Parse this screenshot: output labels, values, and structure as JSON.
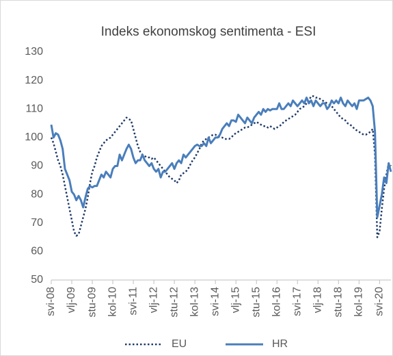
{
  "chart_data": {
    "type": "line",
    "title": "Indeks ekonomskog sentimenta - ESI",
    "categories": [
      "svi-08",
      null,
      null,
      null,
      null,
      null,
      null,
      null,
      null,
      "vlj-09",
      null,
      null,
      null,
      null,
      null,
      null,
      null,
      null,
      "stu-09",
      null,
      null,
      null,
      null,
      null,
      null,
      null,
      null,
      "kol-10",
      null,
      null,
      null,
      null,
      null,
      null,
      null,
      null,
      "svi-11",
      null,
      null,
      null,
      null,
      null,
      null,
      null,
      null,
      "vlj-12",
      null,
      null,
      null,
      null,
      null,
      null,
      null,
      null,
      "stu-12",
      null,
      null,
      null,
      null,
      null,
      null,
      null,
      null,
      "kol-13",
      null,
      null,
      null,
      null,
      null,
      null,
      null,
      null,
      "svi-14",
      null,
      null,
      null,
      null,
      null,
      null,
      null,
      null,
      "vlj-15",
      null,
      null,
      null,
      null,
      null,
      null,
      null,
      null,
      "stu-15",
      null,
      null,
      null,
      null,
      null,
      null,
      null,
      null,
      "kol-16",
      null,
      null,
      null,
      null,
      null,
      null,
      null,
      null,
      "svi-17",
      null,
      null,
      null,
      null,
      null,
      null,
      null,
      null,
      "vlj-18",
      null,
      null,
      null,
      null,
      null,
      null,
      null,
      null,
      "stu-18",
      null,
      null,
      null,
      null,
      null,
      null,
      null,
      null,
      "kol-19",
      null,
      null,
      null,
      null,
      null,
      null,
      null,
      null,
      "svi-20",
      null,
      null,
      null,
      null,
      null
    ],
    "series": [
      {
        "name": "EU",
        "color": "#1f3a68",
        "line_style": "dotted",
        "values": [
          100,
          98,
          95,
          92,
          90,
          87,
          83,
          79,
          75,
          71,
          67,
          65.5,
          66,
          69,
          72,
          75,
          79,
          84,
          88,
          90,
          93,
          95,
          97,
          98,
          99,
          99.5,
          100,
          101,
          102,
          103,
          104,
          105,
          106,
          107,
          106.5,
          106,
          103,
          100,
          97,
          95,
          94,
          93.5,
          93,
          93,
          92.5,
          93,
          92,
          91,
          90,
          89,
          88,
          87,
          86,
          85.5,
          85,
          84,
          85,
          87,
          87.5,
          88,
          89,
          90.5,
          92,
          93,
          94.5,
          96,
          98,
          99,
          99.5,
          100,
          100.5,
          101,
          101,
          100.5,
          100,
          100,
          99.5,
          99.5,
          99.5,
          100,
          101,
          101.5,
          102,
          102.5,
          103,
          103.5,
          103.5,
          104,
          104.5,
          105,
          105.5,
          105,
          104.5,
          104,
          104,
          103.5,
          104,
          103.5,
          103,
          103.5,
          104,
          104.5,
          105.5,
          106,
          106.5,
          107,
          107.5,
          108,
          109,
          110,
          110.5,
          111,
          112,
          113,
          114.5,
          114.5,
          114,
          114,
          113.5,
          113,
          112.5,
          112,
          111.5,
          111,
          110,
          109,
          108,
          107,
          106.5,
          106,
          105,
          104.5,
          104,
          103,
          102.5,
          102,
          101.5,
          101,
          101,
          101.5,
          102,
          103,
          94,
          65,
          67,
          75,
          82,
          87,
          91,
          90
        ]
      },
      {
        "name": "HR",
        "color": "#4a7ebb",
        "line_style": "solid",
        "values": [
          104.5,
          100,
          101.5,
          101,
          99,
          96,
          89,
          87,
          85,
          81,
          80,
          78,
          79.5,
          78,
          75.5,
          79,
          82,
          83,
          82.5,
          83,
          83,
          85,
          87,
          86,
          88,
          87,
          86,
          89,
          90,
          90,
          94,
          92,
          94,
          96,
          97.5,
          96,
          93,
          91,
          92,
          92,
          94,
          92,
          91,
          90,
          91,
          89,
          88,
          89,
          86,
          88,
          88,
          89,
          90,
          91,
          89,
          91,
          92,
          91,
          94,
          93,
          94,
          95,
          96,
          97,
          97.5,
          97,
          97,
          98,
          97,
          100,
          98,
          99,
          100,
          100,
          101,
          103,
          104,
          105,
          104,
          106,
          106,
          105.5,
          108,
          107,
          106,
          105,
          107,
          106,
          105,
          107,
          108,
          109,
          108,
          110,
          109,
          110,
          109.5,
          110,
          110,
          110,
          112,
          110,
          110,
          111,
          112,
          111,
          113,
          112,
          111,
          112,
          113,
          112,
          114,
          112,
          113,
          111,
          113,
          112,
          111,
          112,
          112,
          110,
          111,
          113,
          112,
          113,
          112,
          114,
          112,
          111,
          113,
          112,
          111,
          112,
          110,
          113,
          113,
          113,
          113.5,
          114,
          113,
          111,
          102,
          72,
          76,
          80,
          86,
          84,
          91,
          88
        ]
      }
    ],
    "ylim": [
      50,
      130
    ],
    "yticks": [
      50,
      60,
      70,
      80,
      90,
      100,
      110,
      120,
      130
    ],
    "grid": false,
    "legend": "bottom"
  }
}
